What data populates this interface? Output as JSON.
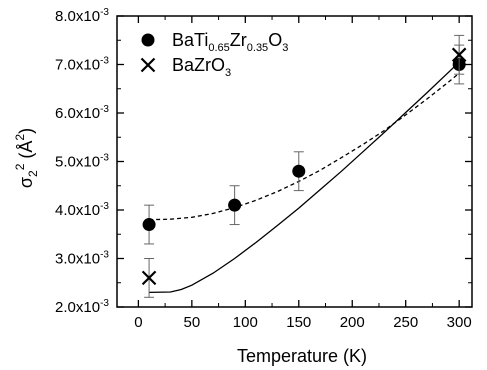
{
  "chart_data": {
    "type": "scatter",
    "xlabel": "Temperature (K)",
    "ylabel": {
      "base": "σ",
      "sub": "2",
      "sup": "2",
      "unit": " (Å",
      "unit_sup": "2",
      "close": ")"
    },
    "xlim": [
      -20,
      312
    ],
    "ylim": [
      0.002,
      0.008
    ],
    "x_ticks": [
      0,
      50,
      100,
      150,
      200,
      250,
      300
    ],
    "x_tick_labels": [
      "0",
      "50",
      "100",
      "150",
      "200",
      "250",
      "300"
    ],
    "y_ticks": [
      0.002,
      0.003,
      0.004,
      0.005,
      0.006,
      0.007,
      0.008
    ],
    "y_tick_labels": [
      {
        "mant": "2.0x10",
        "exp": "-3"
      },
      {
        "mant": "3.0x10",
        "exp": "-3"
      },
      {
        "mant": "4.0x10",
        "exp": "-3"
      },
      {
        "mant": "5.0x10",
        "exp": "-3"
      },
      {
        "mant": "6.0x10",
        "exp": "-3"
      },
      {
        "mant": "7.0x10",
        "exp": "-3"
      },
      {
        "mant": "8.0x10",
        "exp": "-3"
      }
    ],
    "grid": false,
    "legend_position": "top-left",
    "series": [
      {
        "name": "BaTi0.65Zr0.35O3",
        "legend_parts": [
          "BaTi",
          "0.65",
          "Zr",
          "0.35",
          "O",
          "3"
        ],
        "marker": "filled-circle",
        "points": [
          {
            "x": 10,
            "y": 0.0037,
            "err": 0.0004
          },
          {
            "x": 90,
            "y": 0.0041,
            "err": 0.0004
          },
          {
            "x": 150,
            "y": 0.0048,
            "err": 0.0004
          },
          {
            "x": 300,
            "y": 0.007,
            "err": 0.0004
          }
        ]
      },
      {
        "name": "BaZrO3",
        "legend_parts": [
          "BaZrO",
          "3"
        ],
        "marker": "cross",
        "points": [
          {
            "x": 10,
            "y": 0.0026,
            "err": 0.0004
          },
          {
            "x": 300,
            "y": 0.0072,
            "err": 0.0004
          }
        ]
      }
    ],
    "fit_curves": [
      {
        "style": "dashed",
        "points": [
          [
            10,
            0.0038
          ],
          [
            30,
            0.00381
          ],
          [
            50,
            0.00385
          ],
          [
            70,
            0.00393
          ],
          [
            90,
            0.00405
          ],
          [
            110,
            0.0042
          ],
          [
            130,
            0.00438
          ],
          [
            150,
            0.00459
          ],
          [
            170,
            0.00482
          ],
          [
            190,
            0.00508
          ],
          [
            210,
            0.00535
          ],
          [
            230,
            0.00564
          ],
          [
            250,
            0.00596
          ],
          [
            270,
            0.00629
          ],
          [
            290,
            0.00664
          ],
          [
            300,
            0.00682
          ]
        ]
      },
      {
        "style": "solid",
        "points": [
          [
            10,
            0.0023
          ],
          [
            30,
            0.00231
          ],
          [
            40,
            0.00236
          ],
          [
            50,
            0.00245
          ],
          [
            70,
            0.0027
          ],
          [
            90,
            0.003
          ],
          [
            110,
            0.00333
          ],
          [
            130,
            0.00368
          ],
          [
            150,
            0.00404
          ],
          [
            170,
            0.00442
          ],
          [
            190,
            0.0048
          ],
          [
            210,
            0.0052
          ],
          [
            230,
            0.0056
          ],
          [
            250,
            0.00601
          ],
          [
            270,
            0.00642
          ],
          [
            290,
            0.00684
          ],
          [
            300,
            0.00705
          ]
        ]
      }
    ]
  }
}
